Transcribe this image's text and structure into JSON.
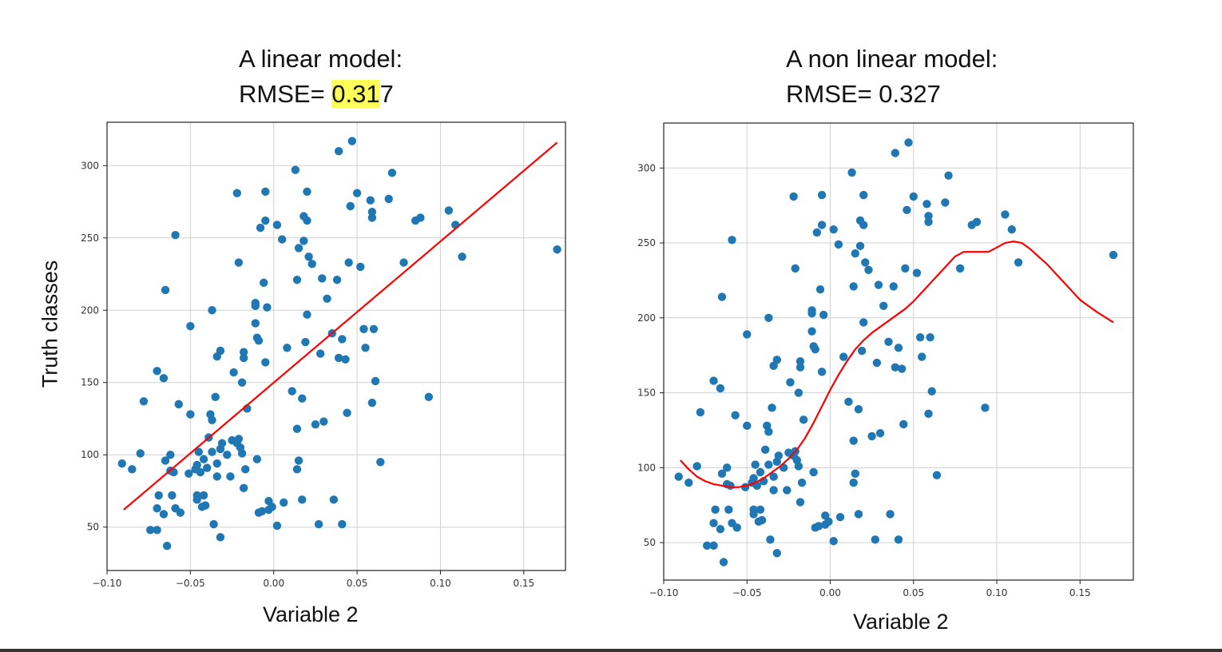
{
  "chart_data": [
    {
      "type": "scatter",
      "title_line1": "A linear model:",
      "title_line2_prefix": "RMSE= ",
      "title_line2_highlight": "0.31",
      "title_line2_suffix": "7",
      "xlabel": "Variable 2",
      "ylabel": "Truth classes",
      "xlim": [
        -0.1,
        0.175
      ],
      "ylim": [
        20,
        330
      ],
      "xticks": [
        -0.1,
        -0.05,
        0.0,
        0.05,
        0.1,
        0.15
      ],
      "xtick_labels": [
        "−0.10",
        "−0.05",
        "0.00",
        "0.05",
        "0.10",
        "0.15"
      ],
      "yticks": [
        50,
        100,
        150,
        200,
        250,
        300
      ],
      "ytick_labels": [
        "50",
        "100",
        "150",
        "200",
        "250",
        "300"
      ],
      "grid": true,
      "point_color": "#1f77b4",
      "line_color": "#ff0000",
      "fit_line": {
        "x": [
          -0.09,
          0.17
        ],
        "y": [
          62,
          316
        ]
      },
      "points": [
        [
          -0.091,
          94
        ],
        [
          -0.085,
          90
        ],
        [
          -0.08,
          101
        ],
        [
          -0.078,
          137
        ],
        [
          -0.074,
          48
        ],
        [
          -0.07,
          158
        ],
        [
          -0.07,
          48
        ],
        [
          -0.07,
          63
        ],
        [
          -0.069,
          72
        ],
        [
          -0.066,
          153
        ],
        [
          -0.066,
          59
        ],
        [
          -0.065,
          214
        ],
        [
          -0.065,
          96
        ],
        [
          -0.064,
          37
        ],
        [
          -0.062,
          100
        ],
        [
          -0.062,
          89
        ],
        [
          -0.061,
          72
        ],
        [
          -0.06,
          88
        ],
        [
          -0.059,
          252
        ],
        [
          -0.059,
          63
        ],
        [
          -0.057,
          135
        ],
        [
          -0.056,
          60
        ],
        [
          -0.05,
          189
        ],
        [
          -0.051,
          87
        ],
        [
          -0.05,
          128
        ],
        [
          -0.047,
          90
        ],
        [
          -0.046,
          72
        ],
        [
          -0.046,
          69
        ],
        [
          -0.046,
          93
        ],
        [
          -0.045,
          102
        ],
        [
          -0.044,
          88
        ],
        [
          -0.043,
          64
        ],
        [
          -0.042,
          72
        ],
        [
          -0.042,
          97
        ],
        [
          -0.041,
          65
        ],
        [
          -0.04,
          91
        ],
        [
          -0.039,
          112
        ],
        [
          -0.038,
          128
        ],
        [
          -0.037,
          200
        ],
        [
          -0.037,
          124
        ],
        [
          -0.037,
          102
        ],
        [
          -0.036,
          52
        ],
        [
          -0.035,
          140
        ],
        [
          -0.034,
          85
        ],
        [
          -0.034,
          94
        ],
        [
          -0.034,
          168
        ],
        [
          -0.032,
          43
        ],
        [
          -0.032,
          172
        ],
        [
          -0.032,
          104
        ],
        [
          -0.031,
          108
        ],
        [
          -0.028,
          100
        ],
        [
          -0.026,
          85
        ],
        [
          -0.025,
          110
        ],
        [
          -0.024,
          157
        ],
        [
          -0.022,
          108
        ],
        [
          -0.022,
          281
        ],
        [
          -0.021,
          233
        ],
        [
          -0.021,
          111
        ],
        [
          -0.02,
          105
        ],
        [
          -0.019,
          101
        ],
        [
          -0.019,
          150
        ],
        [
          -0.018,
          171
        ],
        [
          -0.018,
          167
        ],
        [
          -0.018,
          77
        ],
        [
          -0.017,
          90
        ],
        [
          -0.016,
          132
        ],
        [
          -0.011,
          203
        ],
        [
          -0.011,
          205
        ],
        [
          -0.011,
          191
        ],
        [
          -0.01,
          181
        ],
        [
          -0.01,
          97
        ],
        [
          -0.009,
          60
        ],
        [
          -0.009,
          179
        ],
        [
          -0.008,
          257
        ],
        [
          -0.007,
          61
        ],
        [
          -0.006,
          219
        ],
        [
          -0.005,
          282
        ],
        [
          -0.005,
          164
        ],
        [
          -0.005,
          262
        ],
        [
          -0.004,
          202
        ],
        [
          -0.003,
          68
        ],
        [
          -0.003,
          62
        ],
        [
          -0.001,
          64
        ],
        [
          0.002,
          259
        ],
        [
          0.002,
          51
        ],
        [
          0.005,
          249
        ],
        [
          0.006,
          67
        ],
        [
          0.008,
          174
        ],
        [
          0.011,
          144
        ],
        [
          0.013,
          297
        ],
        [
          0.014,
          221
        ],
        [
          0.014,
          90
        ],
        [
          0.014,
          118
        ],
        [
          0.015,
          96
        ],
        [
          0.015,
          243
        ],
        [
          0.017,
          69
        ],
        [
          0.017,
          139
        ],
        [
          0.018,
          248
        ],
        [
          0.018,
          265
        ],
        [
          0.019,
          178
        ],
        [
          0.02,
          197
        ],
        [
          0.02,
          282
        ],
        [
          0.02,
          262
        ],
        [
          0.021,
          237
        ],
        [
          0.023,
          232
        ],
        [
          0.025,
          121
        ],
        [
          0.027,
          52
        ],
        [
          0.028,
          170
        ],
        [
          0.029,
          222
        ],
        [
          0.03,
          123
        ],
        [
          0.032,
          208
        ],
        [
          0.035,
          184
        ],
        [
          0.036,
          69
        ],
        [
          0.038,
          221
        ],
        [
          0.039,
          310
        ],
        [
          0.039,
          167
        ],
        [
          0.041,
          180
        ],
        [
          0.041,
          52
        ],
        [
          0.043,
          166
        ],
        [
          0.044,
          129
        ],
        [
          0.045,
          233
        ],
        [
          0.046,
          272
        ],
        [
          0.047,
          317
        ],
        [
          0.05,
          281
        ],
        [
          0.052,
          230
        ],
        [
          0.054,
          187
        ],
        [
          0.055,
          174
        ],
        [
          0.058,
          276
        ],
        [
          0.059,
          268
        ],
        [
          0.059,
          136
        ],
        [
          0.059,
          264
        ],
        [
          0.06,
          187
        ],
        [
          0.061,
          151
        ],
        [
          0.064,
          95
        ],
        [
          0.069,
          277
        ],
        [
          0.071,
          295
        ],
        [
          0.078,
          233
        ],
        [
          0.085,
          262
        ],
        [
          0.088,
          264
        ],
        [
          0.093,
          140
        ],
        [
          0.105,
          269
        ],
        [
          0.109,
          259
        ],
        [
          0.113,
          237
        ],
        [
          0.17,
          242
        ]
      ]
    },
    {
      "type": "scatter",
      "title_line1": "A non linear model:",
      "title_line2": "RMSE= 0.327",
      "xlabel": "Variable 2",
      "xlim": [
        -0.1,
        0.182
      ],
      "ylim": [
        25,
        330
      ],
      "xticks": [
        -0.1,
        -0.05,
        0.0,
        0.05,
        0.1,
        0.15
      ],
      "xtick_labels": [
        "−0.10",
        "−0.05",
        "0.00",
        "0.05",
        "0.10",
        "0.15"
      ],
      "yticks": [
        50,
        100,
        150,
        200,
        250,
        300
      ],
      "ytick_labels": [
        "50",
        "100",
        "150",
        "200",
        "250",
        "300"
      ],
      "grid": true,
      "point_color": "#1f77b4",
      "line_color": "#ff0000",
      "fit_curve": {
        "x": [
          -0.09,
          -0.085,
          -0.08,
          -0.075,
          -0.07,
          -0.065,
          -0.06,
          -0.055,
          -0.05,
          -0.045,
          -0.04,
          -0.035,
          -0.03,
          -0.025,
          -0.02,
          -0.015,
          -0.01,
          -0.005,
          0.0,
          0.005,
          0.01,
          0.015,
          0.02,
          0.025,
          0.03,
          0.035,
          0.04,
          0.045,
          0.05,
          0.055,
          0.06,
          0.065,
          0.07,
          0.075,
          0.08,
          0.085,
          0.09,
          0.095,
          0.1,
          0.105,
          0.11,
          0.115,
          0.12,
          0.13,
          0.14,
          0.15,
          0.16,
          0.17
        ],
        "y": [
          105,
          99,
          94,
          91,
          89,
          88,
          87,
          87,
          88,
          90,
          93,
          97,
          101,
          106,
          112,
          120,
          130,
          141,
          152,
          162,
          171,
          179,
          185,
          190,
          194,
          198,
          202,
          206,
          211,
          217,
          223,
          229,
          235,
          241,
          244,
          244,
          244,
          244,
          247,
          250,
          251,
          250,
          246,
          236,
          224,
          212,
          204,
          197
        ]
      },
      "points": [
        [
          -0.091,
          94
        ],
        [
          -0.085,
          90
        ],
        [
          -0.08,
          101
        ],
        [
          -0.078,
          137
        ],
        [
          -0.074,
          48
        ],
        [
          -0.07,
          158
        ],
        [
          -0.07,
          48
        ],
        [
          -0.07,
          63
        ],
        [
          -0.069,
          72
        ],
        [
          -0.066,
          153
        ],
        [
          -0.066,
          59
        ],
        [
          -0.065,
          214
        ],
        [
          -0.065,
          96
        ],
        [
          -0.064,
          37
        ],
        [
          -0.062,
          100
        ],
        [
          -0.062,
          89
        ],
        [
          -0.061,
          72
        ],
        [
          -0.06,
          88
        ],
        [
          -0.059,
          252
        ],
        [
          -0.059,
          63
        ],
        [
          -0.057,
          135
        ],
        [
          -0.056,
          60
        ],
        [
          -0.05,
          189
        ],
        [
          -0.051,
          87
        ],
        [
          -0.05,
          128
        ],
        [
          -0.047,
          90
        ],
        [
          -0.046,
          72
        ],
        [
          -0.046,
          69
        ],
        [
          -0.046,
          93
        ],
        [
          -0.045,
          102
        ],
        [
          -0.044,
          88
        ],
        [
          -0.043,
          64
        ],
        [
          -0.042,
          72
        ],
        [
          -0.042,
          97
        ],
        [
          -0.041,
          65
        ],
        [
          -0.04,
          91
        ],
        [
          -0.039,
          112
        ],
        [
          -0.038,
          128
        ],
        [
          -0.037,
          200
        ],
        [
          -0.037,
          124
        ],
        [
          -0.037,
          102
        ],
        [
          -0.036,
          52
        ],
        [
          -0.035,
          140
        ],
        [
          -0.034,
          85
        ],
        [
          -0.034,
          94
        ],
        [
          -0.034,
          168
        ],
        [
          -0.032,
          43
        ],
        [
          -0.032,
          172
        ],
        [
          -0.032,
          104
        ],
        [
          -0.031,
          108
        ],
        [
          -0.028,
          100
        ],
        [
          -0.026,
          85
        ],
        [
          -0.025,
          110
        ],
        [
          -0.024,
          157
        ],
        [
          -0.022,
          108
        ],
        [
          -0.022,
          281
        ],
        [
          -0.021,
          233
        ],
        [
          -0.021,
          111
        ],
        [
          -0.02,
          105
        ],
        [
          -0.019,
          101
        ],
        [
          -0.019,
          150
        ],
        [
          -0.018,
          171
        ],
        [
          -0.018,
          167
        ],
        [
          -0.018,
          77
        ],
        [
          -0.017,
          90
        ],
        [
          -0.016,
          132
        ],
        [
          -0.011,
          203
        ],
        [
          -0.011,
          205
        ],
        [
          -0.011,
          191
        ],
        [
          -0.01,
          181
        ],
        [
          -0.01,
          97
        ],
        [
          -0.009,
          60
        ],
        [
          -0.009,
          179
        ],
        [
          -0.008,
          257
        ],
        [
          -0.007,
          61
        ],
        [
          -0.006,
          219
        ],
        [
          -0.005,
          282
        ],
        [
          -0.005,
          164
        ],
        [
          -0.005,
          262
        ],
        [
          -0.004,
          202
        ],
        [
          -0.003,
          68
        ],
        [
          -0.003,
          62
        ],
        [
          -0.001,
          64
        ],
        [
          0.002,
          259
        ],
        [
          0.002,
          51
        ],
        [
          0.005,
          249
        ],
        [
          0.006,
          67
        ],
        [
          0.008,
          174
        ],
        [
          0.011,
          144
        ],
        [
          0.013,
          297
        ],
        [
          0.014,
          221
        ],
        [
          0.014,
          90
        ],
        [
          0.014,
          118
        ],
        [
          0.015,
          96
        ],
        [
          0.015,
          243
        ],
        [
          0.017,
          69
        ],
        [
          0.017,
          139
        ],
        [
          0.018,
          248
        ],
        [
          0.018,
          265
        ],
        [
          0.019,
          178
        ],
        [
          0.02,
          197
        ],
        [
          0.02,
          282
        ],
        [
          0.02,
          262
        ],
        [
          0.021,
          237
        ],
        [
          0.023,
          232
        ],
        [
          0.025,
          121
        ],
        [
          0.027,
          52
        ],
        [
          0.028,
          170
        ],
        [
          0.029,
          222
        ],
        [
          0.03,
          123
        ],
        [
          0.032,
          208
        ],
        [
          0.035,
          184
        ],
        [
          0.036,
          69
        ],
        [
          0.038,
          221
        ],
        [
          0.039,
          310
        ],
        [
          0.039,
          167
        ],
        [
          0.041,
          180
        ],
        [
          0.041,
          52
        ],
        [
          0.043,
          166
        ],
        [
          0.044,
          129
        ],
        [
          0.045,
          233
        ],
        [
          0.046,
          272
        ],
        [
          0.047,
          317
        ],
        [
          0.05,
          281
        ],
        [
          0.052,
          230
        ],
        [
          0.054,
          187
        ],
        [
          0.055,
          174
        ],
        [
          0.058,
          276
        ],
        [
          0.059,
          268
        ],
        [
          0.059,
          136
        ],
        [
          0.059,
          264
        ],
        [
          0.06,
          187
        ],
        [
          0.061,
          151
        ],
        [
          0.064,
          95
        ],
        [
          0.069,
          277
        ],
        [
          0.071,
          295
        ],
        [
          0.078,
          233
        ],
        [
          0.085,
          262
        ],
        [
          0.088,
          264
        ],
        [
          0.093,
          140
        ],
        [
          0.105,
          269
        ],
        [
          0.109,
          259
        ],
        [
          0.113,
          237
        ],
        [
          0.17,
          242
        ]
      ]
    }
  ]
}
